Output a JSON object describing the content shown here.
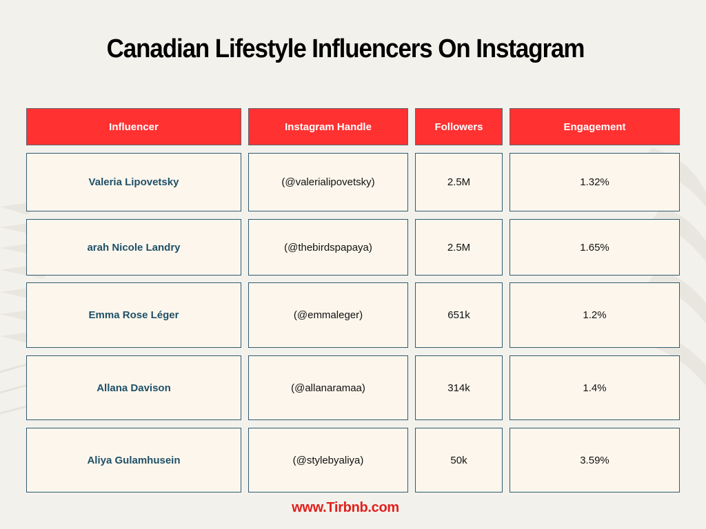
{
  "title": "Canadian Lifestyle Influencers On Instagram",
  "table": {
    "headers": [
      "Influencer",
      "Instagram Handle",
      "Followers",
      "Engagement"
    ],
    "rows": [
      {
        "influencer": "Valeria Lipovetsky",
        "handle": "(@valerialipovetsky)",
        "followers": "2.5M",
        "engagement": "1.32%"
      },
      {
        "influencer": "arah Nicole Landry",
        "handle": "(@thebirdspapaya)",
        "followers": "2.5M",
        "engagement": "1.65%"
      },
      {
        "influencer": "Emma Rose Léger",
        "handle": "(@emmaleger)",
        "followers": "651k",
        "engagement": "1.2%"
      },
      {
        "influencer": "Allana Davison",
        "handle": "(@allanaramaa)",
        "followers": "314k",
        "engagement": "1.4%"
      },
      {
        "influencer": "Aliya Gulamhusein",
        "handle": "(@stylebyaliya)",
        "followers": "50k",
        "engagement": "3.59%"
      }
    ]
  },
  "footer": "www.Tirbnb.com",
  "colors": {
    "header_bg": "#ff3131",
    "cell_bg": "#fcf6ec",
    "name_text": "#1f5068",
    "footer_text": "#e0201c",
    "page_bg": "#f3f1ec"
  }
}
